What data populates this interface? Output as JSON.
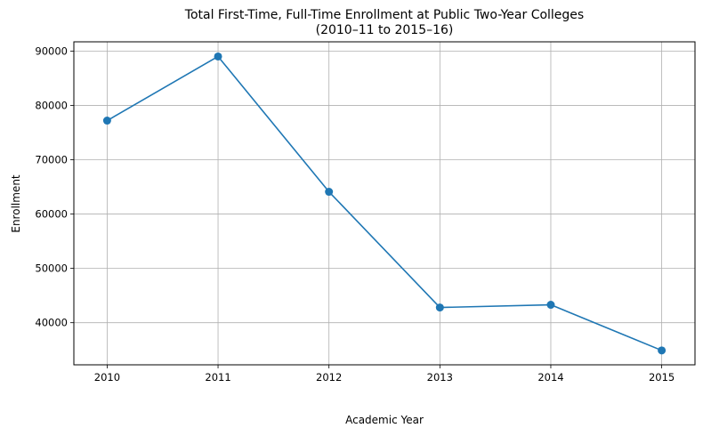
{
  "chart_data": {
    "type": "line",
    "title_line1": "Total First-Time, Full-Time Enrollment at Public Two-Year Colleges",
    "title_line2": "(2010–11 to 2015–16)",
    "xlabel": "Academic Year",
    "ylabel": "Enrollment",
    "x": [
      2010,
      2011,
      2012,
      2013,
      2014,
      2015
    ],
    "xticks": [
      "2010",
      "2011",
      "2012",
      "2013",
      "2014",
      "2015"
    ],
    "yticks": [
      "40000",
      "50000",
      "60000",
      "70000",
      "80000",
      "90000"
    ],
    "ytick_values": [
      40000,
      50000,
      60000,
      70000,
      80000,
      90000
    ],
    "xlim": [
      2009.7,
      2015.3
    ],
    "ylim": [
      32250,
      91700
    ],
    "grid": true,
    "series": [
      {
        "values": [
          77200,
          89000,
          64100,
          42800,
          43300,
          34900
        ],
        "color": "#1f77b4",
        "marker": "circle"
      }
    ]
  }
}
